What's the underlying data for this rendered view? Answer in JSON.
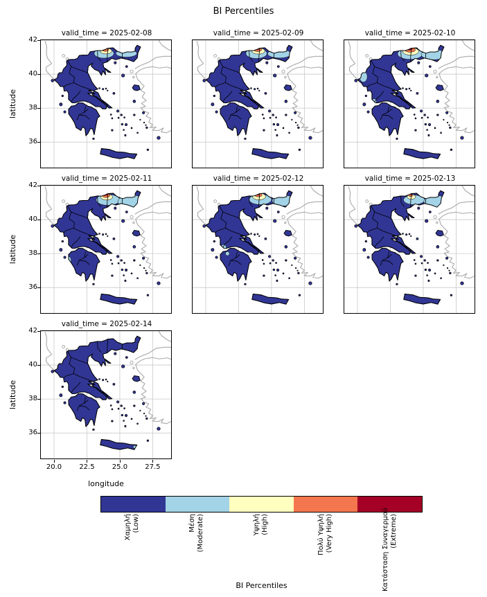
{
  "figure": {
    "title": "BI Percentiles"
  },
  "axes": {
    "xlabel": "longitude",
    "ylabel": "latitude",
    "xticks": [
      "20.0",
      "22.5",
      "25.0",
      "27.5"
    ],
    "yticks": [
      "42",
      "40",
      "38",
      "36"
    ]
  },
  "panels": [
    {
      "title": "valid_time = 2025-02-08",
      "spots": [
        {
          "lon": 23.8,
          "lat": 41.22,
          "rx": 0.75,
          "ry": 0.28,
          "level": "moderate"
        },
        {
          "lon": 25.5,
          "lat": 41.22,
          "rx": 0.8,
          "ry": 0.22,
          "level": "moderate"
        },
        {
          "lon": 23.95,
          "lat": 41.36,
          "rx": 0.45,
          "ry": 0.17,
          "level": "high"
        },
        {
          "lon": 23.9,
          "lat": 41.44,
          "rx": 0.25,
          "ry": 0.1,
          "level": "very_high"
        },
        {
          "lon": 23.85,
          "lat": 41.48,
          "rx": 0.11,
          "ry": 0.05,
          "level": "extreme"
        }
      ]
    },
    {
      "title": "valid_time = 2025-02-09",
      "spots": [
        {
          "lon": 23.85,
          "lat": 41.22,
          "rx": 0.8,
          "ry": 0.3,
          "level": "moderate"
        },
        {
          "lon": 25.6,
          "lat": 41.2,
          "rx": 0.9,
          "ry": 0.25,
          "level": "moderate"
        },
        {
          "lon": 24.0,
          "lat": 41.36,
          "rx": 0.5,
          "ry": 0.18,
          "level": "high"
        },
        {
          "lon": 23.95,
          "lat": 41.44,
          "rx": 0.3,
          "ry": 0.11,
          "level": "very_high"
        },
        {
          "lon": 23.9,
          "lat": 41.48,
          "rx": 0.13,
          "ry": 0.05,
          "level": "extreme"
        }
      ]
    },
    {
      "title": "valid_time = 2025-02-10",
      "spots": [
        {
          "lon": 24.0,
          "lat": 41.2,
          "rx": 0.95,
          "ry": 0.33,
          "level": "moderate"
        },
        {
          "lon": 25.8,
          "lat": 41.15,
          "rx": 0.95,
          "ry": 0.3,
          "level": "moderate"
        },
        {
          "lon": 20.45,
          "lat": 39.85,
          "rx": 0.3,
          "ry": 0.32,
          "level": "moderate"
        },
        {
          "lon": 21.25,
          "lat": 38.4,
          "rx": 0.2,
          "ry": 0.15,
          "level": "moderate"
        },
        {
          "lon": 24.05,
          "lat": 41.34,
          "rx": 0.6,
          "ry": 0.22,
          "level": "high"
        },
        {
          "lon": 24.0,
          "lat": 41.43,
          "rx": 0.4,
          "ry": 0.14,
          "level": "very_high"
        },
        {
          "lon": 23.95,
          "lat": 41.49,
          "rx": 0.22,
          "ry": 0.07,
          "level": "extreme"
        }
      ]
    },
    {
      "title": "valid_time = 2025-02-11",
      "spots": [
        {
          "lon": 24.1,
          "lat": 41.16,
          "rx": 0.9,
          "ry": 0.32,
          "level": "moderate"
        },
        {
          "lon": 25.85,
          "lat": 41.05,
          "rx": 1.0,
          "ry": 0.4,
          "level": "moderate"
        },
        {
          "lon": 21.15,
          "lat": 37.6,
          "rx": 0.15,
          "ry": 0.22,
          "level": "moderate"
        },
        {
          "lon": 24.0,
          "lat": 41.33,
          "rx": 0.45,
          "ry": 0.18,
          "level": "high"
        },
        {
          "lon": 23.95,
          "lat": 41.42,
          "rx": 0.3,
          "ry": 0.12,
          "level": "very_high"
        },
        {
          "lon": 23.9,
          "lat": 41.48,
          "rx": 0.17,
          "ry": 0.06,
          "level": "extreme"
        }
      ]
    },
    {
      "title": "valid_time = 2025-02-12",
      "spots": [
        {
          "lon": 24.15,
          "lat": 41.18,
          "rx": 0.85,
          "ry": 0.3,
          "level": "moderate"
        },
        {
          "lon": 25.9,
          "lat": 41.12,
          "rx": 0.85,
          "ry": 0.32,
          "level": "moderate"
        },
        {
          "lon": 21.35,
          "lat": 38.35,
          "rx": 0.22,
          "ry": 0.18,
          "level": "moderate"
        },
        {
          "lon": 21.65,
          "lat": 38.0,
          "rx": 0.15,
          "ry": 0.12,
          "level": "moderate"
        },
        {
          "lon": 24.05,
          "lat": 41.36,
          "rx": 0.5,
          "ry": 0.2,
          "level": "high"
        },
        {
          "lon": 24.0,
          "lat": 41.45,
          "rx": 0.28,
          "ry": 0.11,
          "level": "very_high"
        },
        {
          "lon": 23.95,
          "lat": 41.49,
          "rx": 0.11,
          "ry": 0.04,
          "level": "extreme"
        }
      ]
    },
    {
      "title": "valid_time = 2025-02-13",
      "spots": [
        {
          "lon": 24.3,
          "lat": 41.16,
          "rx": 0.8,
          "ry": 0.28,
          "level": "moderate"
        },
        {
          "lon": 25.95,
          "lat": 41.08,
          "rx": 0.9,
          "ry": 0.34,
          "level": "moderate"
        },
        {
          "lon": 24.1,
          "lat": 41.34,
          "rx": 0.32,
          "ry": 0.14,
          "level": "high"
        },
        {
          "lon": 24.05,
          "lat": 41.42,
          "rx": 0.16,
          "ry": 0.07,
          "level": "very_high"
        }
      ]
    },
    {
      "title": "valid_time = 2025-02-14",
      "spots": [
        {
          "lon": 26.15,
          "lat": 35.18,
          "rx": 0.13,
          "ry": 0.09,
          "level": "moderate"
        }
      ]
    }
  ],
  "colorbar": {
    "label": "BI Percentiles",
    "classes": [
      {
        "key": "low",
        "label": "Χαμηλή",
        "label_en": "(Low)",
        "color": "#313695"
      },
      {
        "key": "moderate",
        "label": "Μέση",
        "label_en": "(Moderate)",
        "color": "#a3d3e6"
      },
      {
        "key": "high",
        "label": "Υψηλή",
        "label_en": "(High)",
        "color": "#ffffbf"
      },
      {
        "key": "very_high",
        "label": "Πολύ Υψηλή",
        "label_en": "(Very High)",
        "color": "#f4764e"
      },
      {
        "key": "extreme",
        "label": "Κατάσταση Συναγερμού",
        "label_en": "(Extreme)",
        "color": "#a50026"
      }
    ]
  },
  "chart_data": {
    "type": "heatmap",
    "title": "BI Percentiles",
    "facet_variable": "valid_time",
    "facets": [
      "2025-02-08",
      "2025-02-09",
      "2025-02-10",
      "2025-02-11",
      "2025-02-12",
      "2025-02-13",
      "2025-02-14"
    ],
    "xlabel": "longitude",
    "ylabel": "latitude",
    "xlim": [
      19.0,
      28.9
    ],
    "ylim": [
      34.5,
      42.0
    ],
    "xticks": [
      20.0,
      22.5,
      25.0,
      27.5
    ],
    "yticks": [
      36,
      38,
      40,
      42
    ],
    "region": "Greece",
    "grid": true,
    "legend_position": "bottom",
    "levels": [
      "Χαμηλή (Low)",
      "Μέση (Moderate)",
      "Υψηλή (High)",
      "Πολύ Υψηλή (Very High)",
      "Κατάσταση Συναγερμού (Extreme)"
    ],
    "colors": [
      "#313695",
      "#a3d3e6",
      "#ffffbf",
      "#f4764e",
      "#a50026"
    ],
    "summary": "Faceted maps of Greece, one per day 2025-02-08 to 2025-02-14. Greece is predominantly in the Low (dark blue) class in every panel. Moderate-to-Extreme values appear along the northern border region in panels 02-08 through 02-13 (strongest around 02-10 and 02-11), with small Moderate patches on the western coast on 02-10, 02-11 and 02-12; the 02-14 panel is almost entirely Low."
  }
}
